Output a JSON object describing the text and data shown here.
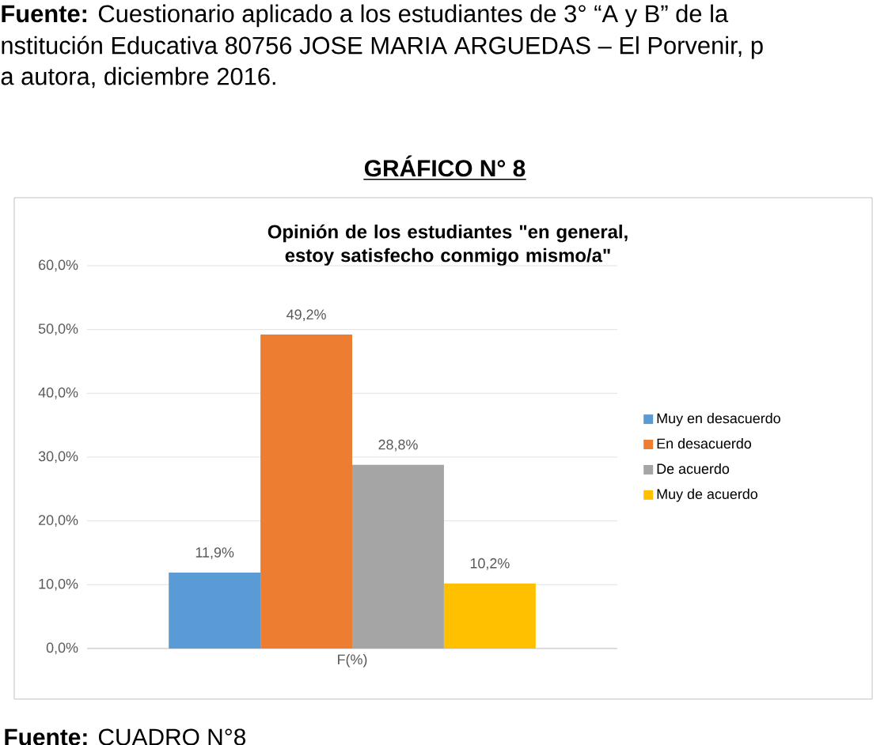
{
  "chart_data": {
    "type": "bar",
    "title": "Opinión de los estudiantes \"en general, estoy satisfecho conmigo mismo/a\"",
    "categories": [
      "F(%)"
    ],
    "series": [
      {
        "name": "Muy en desacuerdo",
        "color": "#5b9bd5",
        "values": [
          11.9
        ],
        "value_labels": [
          "11,9%"
        ]
      },
      {
        "name": "En desacuerdo",
        "color": "#ed7d31",
        "values": [
          49.2
        ],
        "value_labels": [
          "49,2%"
        ]
      },
      {
        "name": "De acuerdo",
        "color": "#a5a5a5",
        "values": [
          28.8
        ],
        "value_labels": [
          "28,8%"
        ]
      },
      {
        "name": "Muy de acuerdo",
        "color": "#ffc000",
        "values": [
          10.2
        ],
        "value_labels": [
          "10,2%"
        ]
      }
    ],
    "ylim": [
      0,
      60
    ],
    "yticks": [
      {
        "value": 0,
        "label": "0,0%"
      },
      {
        "value": 10,
        "label": "10,0%"
      },
      {
        "value": 20,
        "label": "20,0%"
      },
      {
        "value": 30,
        "label": "30,0%"
      },
      {
        "value": 40,
        "label": "40,0%"
      },
      {
        "value": 50,
        "label": "50,0%"
      },
      {
        "value": 60,
        "label": "60,0%"
      }
    ],
    "grid": "y",
    "legend": "right",
    "annotations": [
      "**Fuente:** Cuestionario aplicado a los estudiantes de 3° “A y B” de la",
      "nstitución Educativa 80756 JOSE MARIA ARGUEDAS – El Porvenir, p",
      "a autora, diciembre 2016.",
      "**GRÁFICO N° 8**",
      "**Fuente:** CUADRO N°8"
    ]
  }
}
